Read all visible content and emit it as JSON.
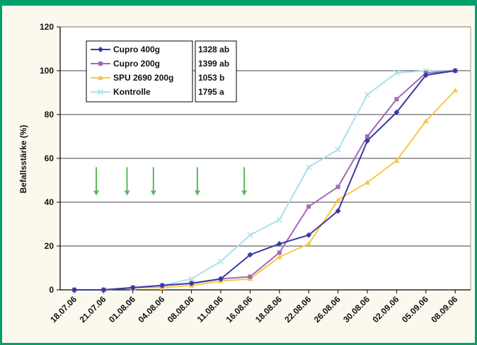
{
  "chart_data": {
    "type": "line",
    "title": "",
    "ylabel": "Befallsstärke (%)",
    "xlabel": "",
    "ylim": [
      0,
      120
    ],
    "yticks": [
      0,
      20,
      40,
      60,
      80,
      100,
      120
    ],
    "grid": "horizontal",
    "x_tick_labels": [
      "18.07.06",
      "21.07.06",
      "01.08.06",
      "04.08.06",
      "08.08.06",
      "11.08.06",
      "16.08.06",
      "18.08.06",
      "22.08.06",
      "26.08.06",
      "30.08.06",
      "02.09.06",
      "05.09.06",
      "08.09.06"
    ],
    "series": [
      {
        "name": "Cupro 400g",
        "color": "#3a3aa0",
        "marker": "diamond",
        "points": [
          [
            0,
            0
          ],
          [
            1,
            0
          ],
          [
            2,
            1
          ],
          [
            3,
            2
          ],
          [
            4,
            3
          ],
          [
            5,
            5
          ],
          [
            6,
            16
          ],
          [
            7,
            21
          ],
          [
            8,
            25
          ],
          [
            9,
            36
          ],
          [
            10,
            68
          ],
          [
            11,
            81
          ],
          [
            12,
            98
          ],
          [
            13,
            100
          ]
        ]
      },
      {
        "name": "Cupro 200g",
        "color": "#a368b8",
        "marker": "square",
        "points": [
          [
            0,
            0
          ],
          [
            1,
            0
          ],
          [
            2,
            1
          ],
          [
            3,
            2
          ],
          [
            4,
            3
          ],
          [
            5,
            5
          ],
          [
            6,
            6
          ],
          [
            7,
            17
          ],
          [
            8,
            38
          ],
          [
            9,
            47
          ],
          [
            10,
            70
          ],
          [
            11,
            87
          ],
          [
            12,
            99
          ],
          [
            13,
            100
          ]
        ]
      },
      {
        "name": "SPU 2690 200g",
        "color": "#f7c948",
        "marker": "triangle",
        "points": [
          [
            0,
            0
          ],
          [
            1,
            0
          ],
          [
            2,
            1
          ],
          [
            3,
            1
          ],
          [
            4,
            2
          ],
          [
            5,
            4
          ],
          [
            6,
            5
          ],
          [
            7,
            15
          ],
          [
            8,
            21
          ],
          [
            9,
            41
          ],
          [
            10,
            49
          ],
          [
            11,
            59
          ],
          [
            12,
            77
          ],
          [
            13,
            91
          ]
        ]
      },
      {
        "name": "Kontrolle",
        "color": "#a8e2ea",
        "marker": "cross",
        "points": [
          [
            0,
            0
          ],
          [
            1,
            0
          ],
          [
            2,
            1
          ],
          [
            3,
            2
          ],
          [
            4,
            5
          ],
          [
            5,
            13
          ],
          [
            6,
            25
          ],
          [
            7,
            32
          ],
          [
            8,
            56
          ],
          [
            9,
            64
          ],
          [
            10,
            89
          ],
          [
            11,
            99
          ],
          [
            12,
            100
          ],
          [
            13,
            100
          ]
        ]
      }
    ],
    "legend_placement": "top-left",
    "annotation_box": [
      "1328 ab",
      "1399 ab",
      "1053 b",
      "1795 a"
    ],
    "arrow_color": "#5cb85c",
    "arrows_at_x": [
      0.75,
      1.8,
      2.7,
      4.2,
      5.8
    ]
  }
}
